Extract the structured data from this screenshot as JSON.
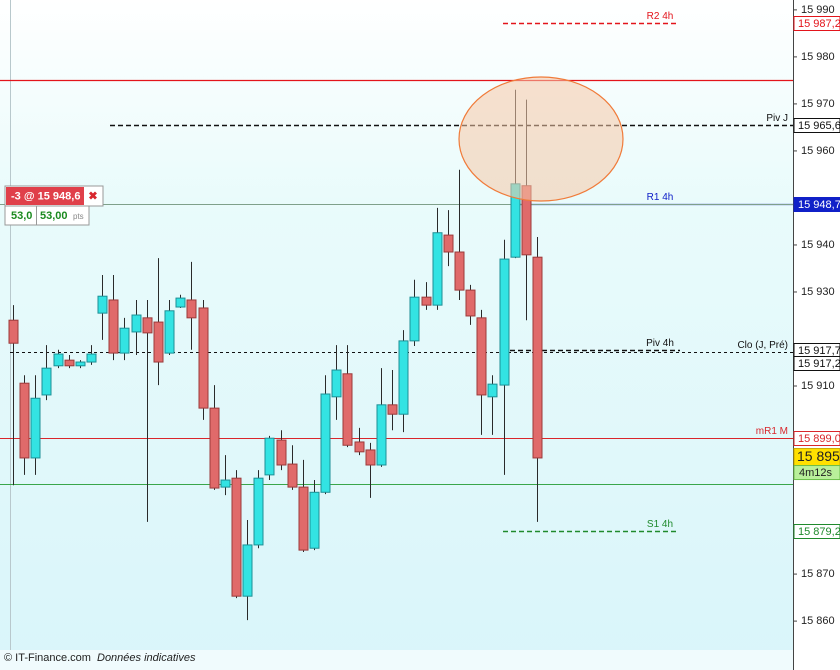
{
  "chart_data": {
    "type": "candlestick",
    "up_color": "#33e3e3",
    "down_color": "#e06a6a",
    "open": [
      15924.0,
      15910.6,
      15894.7,
      15908.1,
      15914.3,
      15915.5,
      15914.3,
      15915.1,
      15925.5,
      15928.3,
      15917.0,
      15921.5,
      15924.5,
      15923.6,
      15917.0,
      15926.8,
      15928.3,
      15926.6,
      15905.3,
      15888.5,
      15890.4,
      15865.3,
      15876.2,
      15891.1,
      15898.5,
      15893.4,
      15888.5,
      15875.5,
      15887.4,
      15907.7,
      15912.6,
      15898.1,
      15896.4,
      15893.2,
      15906.0,
      15904.0,
      15919.6,
      15928.9,
      15927.2,
      15942.1,
      15938.5,
      15930.4,
      15924.5,
      15907.7,
      15910.2,
      15937.4,
      15952.6,
      15937.4
    ],
    "high": [
      15927.2,
      15912.3,
      15912.3,
      15918.7,
      15917.7,
      15916.6,
      15915.5,
      15918.7,
      15933.6,
      15933.6,
      15924.5,
      15928.3,
      15928.3,
      15937.2,
      15928.3,
      15929.4,
      15936.4,
      15928.3,
      15910.2,
      15895.3,
      15892.1,
      15881.5,
      15892.1,
      15899.4,
      15900.6,
      15897.4,
      15894.3,
      15890.0,
      15912.3,
      15918.7,
      15918.7,
      15901.1,
      15897.9,
      15913.8,
      15913.4,
      15921.9,
      15932.6,
      15932.1,
      15947.9,
      15947.4,
      15956.0,
      15931.5,
      15926.2,
      15912.3,
      15941.1,
      15973.0,
      15970.9,
      15941.7
    ],
    "low": [
      15888.9,
      15891.1,
      15891.1,
      15907.0,
      15913.8,
      15913.8,
      15913.8,
      15914.5,
      15919.8,
      15915.5,
      15915.5,
      15916.6,
      15881.1,
      15910.2,
      15916.6,
      15926.6,
      15917.7,
      15902.8,
      15887.9,
      15886.8,
      15864.9,
      15860.2,
      15875.5,
      15890.0,
      15892.1,
      15887.9,
      15874.7,
      15875.1,
      15887.0,
      15902.8,
      15897.0,
      15895.3,
      15886.2,
      15892.8,
      15900.6,
      15900.2,
      15918.5,
      15926.2,
      15926.2,
      15935.5,
      15928.3,
      15923.0,
      15899.6,
      15899.6,
      15891.1,
      15937.2,
      15924.0,
      15881.1
    ],
    "close": [
      15919.1,
      15894.7,
      15907.4,
      15913.8,
      15916.8,
      15914.3,
      15915.1,
      15916.8,
      15929.1,
      15917.0,
      15922.3,
      15925.1,
      15921.3,
      15915.1,
      15926.0,
      15928.7,
      15924.5,
      15905.3,
      15888.3,
      15890.0,
      15865.3,
      15876.2,
      15890.4,
      15898.9,
      15893.2,
      15888.5,
      15875.1,
      15887.4,
      15908.3,
      15913.4,
      15897.4,
      15896.0,
      15893.2,
      15906.0,
      15904.0,
      15919.6,
      15928.9,
      15927.2,
      15942.6,
      15938.5,
      15930.4,
      15924.9,
      15908.1,
      15910.4,
      15937.0,
      15953.0,
      15937.9,
      15894.7
    ],
    "ylim": [
      15849.6,
      15992.1
    ],
    "yticks": [
      {
        "value": 15990,
        "label": "15 990"
      },
      {
        "value": 15980,
        "label": "15 980"
      },
      {
        "value": 15970,
        "label": "15 970"
      },
      {
        "value": 15960,
        "label": "15 960"
      },
      {
        "value": 15940,
        "label": "15 940"
      },
      {
        "value": 15930,
        "label": "15 930"
      },
      {
        "value": 15910,
        "label": "15 910"
      },
      {
        "value": 15870,
        "label": "15 870"
      },
      {
        "value": 15860,
        "label": "15 860"
      }
    ],
    "levels": [
      {
        "label": "R2 4h",
        "value": 15987.2,
        "value_label": "15 987,2",
        "color": "#e3141b",
        "style": "dashed",
        "box_fill": "#ffffff"
      },
      {
        "value": 15975.1,
        "color": "#e3141b",
        "style": "solid"
      },
      {
        "label": "Piv J",
        "value": 15965.6,
        "value_label": "15 965,6",
        "color": "#111111",
        "style": "dashed",
        "box_fill": "#ffffff"
      },
      {
        "label": "R1 4h",
        "value": 15948.7,
        "value_label": "15 948,7",
        "color": "#1020c8",
        "style": "solid",
        "box_fill": "#1020c8"
      },
      {
        "label": "Piv 4h",
        "value": 15917.7,
        "value_label": "15 917,7",
        "color": "#111111",
        "style": "dashed",
        "box_fill": "#ffffff"
      },
      {
        "label": "Clo (J, Pré)",
        "value": 15917.2,
        "value_label": "15 917,2",
        "color": "#111111",
        "style": "dashed",
        "box_fill": "#ffffff"
      },
      {
        "label": "mR1 M",
        "value": 15899.0,
        "value_label": "15 899,0",
        "color": "#d9262b",
        "style": "solid",
        "box_fill": "#ffffff"
      },
      {
        "value": 15889.1,
        "color": "#3aa64a",
        "style": "solid"
      },
      {
        "label": "S1 4h",
        "value": 15879.2,
        "value_label": "15 879,2",
        "color": "#1f8a2c",
        "style": "dashed",
        "box_fill": "#ffffff"
      }
    ],
    "last_price": {
      "value": 15895,
      "label": "15 895",
      "timer": "4m12s"
    },
    "order": {
      "price": 15948.6,
      "label": "-3 @ 15 948,6",
      "close_icon": "✖",
      "points": "53,0",
      "points_value": "53,00",
      "points_unit": "pts"
    },
    "footer": {
      "copyright": "© IT-Finance.com",
      "note": "Données indicatives"
    }
  }
}
